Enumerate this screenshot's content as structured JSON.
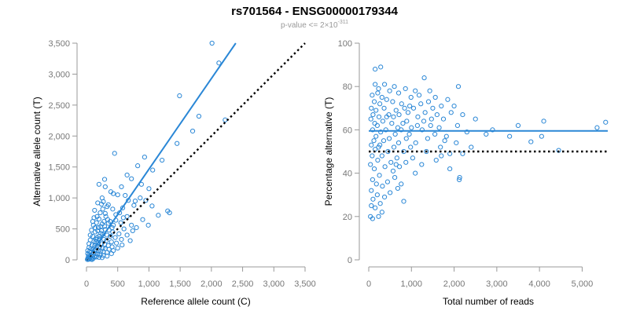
{
  "title": "rs701564 - ENSG00000179344",
  "subtitle": {
    "prefix": "p-value <= 2×10",
    "exponent": "-311"
  },
  "colors": {
    "points": "#2a87d6",
    "reference": "#000000",
    "axis": "#999999"
  },
  "chart_data": [
    {
      "type": "scatter",
      "xlabel": "Reference allele count (C)",
      "ylabel": "Alternative allele count (T)",
      "xlim": [
        0,
        3500
      ],
      "ylim": [
        0,
        3500
      ],
      "xticks": [
        0,
        500,
        1000,
        1500,
        2000,
        2500,
        3000,
        3500
      ],
      "xtick_labels": [
        "0",
        "500",
        "1,000",
        "1,500",
        "2,000",
        "2,500",
        "3,000",
        "3,500"
      ],
      "yticks": [
        0,
        500,
        1000,
        1500,
        2000,
        2500,
        3000,
        3500
      ],
      "ytick_labels": [
        "0",
        "500",
        "1,000",
        "1,500",
        "2,000",
        "2,500",
        "3,000",
        "3,500"
      ],
      "fit_line": {
        "x": [
          0,
          2390
        ],
        "y": [
          0,
          3500
        ]
      },
      "reference_line": {
        "x": [
          0,
          3500
        ],
        "y": [
          0,
          3500
        ]
      },
      "points": [
        [
          2010,
          3500
        ],
        [
          2120,
          3180
        ],
        [
          1490,
          2650
        ],
        [
          1800,
          2320
        ],
        [
          2220,
          2260
        ],
        [
          1700,
          2080
        ],
        [
          1450,
          1880
        ],
        [
          450,
          1720
        ],
        [
          930,
          1660
        ],
        [
          1210,
          1610
        ],
        [
          820,
          1520
        ],
        [
          1060,
          1450
        ],
        [
          290,
          1300
        ],
        [
          650,
          1370
        ],
        [
          720,
          1310
        ],
        [
          200,
          1220
        ],
        [
          560,
          1180
        ],
        [
          300,
          1180
        ],
        [
          880,
          1220
        ],
        [
          390,
          1100
        ],
        [
          430,
          1070
        ],
        [
          500,
          1050
        ],
        [
          620,
          1040
        ],
        [
          250,
          1000
        ],
        [
          670,
          960
        ],
        [
          950,
          960
        ],
        [
          180,
          920
        ],
        [
          270,
          940
        ],
        [
          350,
          890
        ],
        [
          760,
          880
        ],
        [
          1050,
          870
        ],
        [
          1300,
          790
        ],
        [
          1330,
          760
        ],
        [
          420,
          820
        ],
        [
          580,
          840
        ],
        [
          130,
          800
        ],
        [
          220,
          760
        ],
        [
          300,
          750
        ],
        [
          470,
          730
        ],
        [
          650,
          700
        ],
        [
          900,
          650
        ],
        [
          120,
          680
        ],
        [
          200,
          660
        ],
        [
          340,
          650
        ],
        [
          380,
          620
        ],
        [
          550,
          600
        ],
        [
          720,
          560
        ],
        [
          800,
          520
        ],
        [
          160,
          600
        ],
        [
          250,
          580
        ],
        [
          290,
          540
        ],
        [
          430,
          560
        ],
        [
          600,
          500
        ],
        [
          110,
          560
        ],
        [
          190,
          520
        ],
        [
          300,
          490
        ],
        [
          360,
          480
        ],
        [
          420,
          450
        ],
        [
          520,
          420
        ],
        [
          650,
          400
        ],
        [
          80,
          480
        ],
        [
          140,
          450
        ],
        [
          230,
          430
        ],
        [
          260,
          410
        ],
        [
          330,
          400
        ],
        [
          380,
          380
        ],
        [
          460,
          360
        ],
        [
          560,
          330
        ],
        [
          700,
          310
        ],
        [
          60,
          400
        ],
        [
          100,
          380
        ],
        [
          170,
          360
        ],
        [
          210,
          340
        ],
        [
          280,
          330
        ],
        [
          320,
          310
        ],
        [
          400,
          290
        ],
        [
          480,
          270
        ],
        [
          570,
          240
        ],
        [
          60,
          320
        ],
        [
          120,
          300
        ],
        [
          150,
          290
        ],
        [
          190,
          280
        ],
        [
          240,
          260
        ],
        [
          290,
          250
        ],
        [
          350,
          230
        ],
        [
          410,
          210
        ],
        [
          500,
          190
        ],
        [
          40,
          260
        ],
        [
          90,
          240
        ],
        [
          130,
          230
        ],
        [
          170,
          220
        ],
        [
          210,
          210
        ],
        [
          260,
          190
        ],
        [
          300,
          180
        ],
        [
          360,
          170
        ],
        [
          430,
          150
        ],
        [
          40,
          200
        ],
        [
          70,
          180
        ],
        [
          110,
          170
        ],
        [
          150,
          160
        ],
        [
          190,
          150
        ],
        [
          230,
          140
        ],
        [
          270,
          130
        ],
        [
          330,
          120
        ],
        [
          400,
          100
        ],
        [
          20,
          150
        ],
        [
          50,
          130
        ],
        [
          80,
          120
        ],
        [
          110,
          110
        ],
        [
          140,
          100
        ],
        [
          180,
          90
        ],
        [
          220,
          80
        ],
        [
          270,
          70
        ],
        [
          330,
          60
        ],
        [
          20,
          100
        ],
        [
          40,
          80
        ],
        [
          70,
          70
        ],
        [
          100,
          60
        ],
        [
          130,
          50
        ],
        [
          160,
          45
        ],
        [
          200,
          40
        ],
        [
          250,
          35
        ],
        [
          30,
          50
        ],
        [
          55,
          40
        ],
        [
          80,
          30
        ],
        [
          110,
          25
        ],
        [
          20,
          20
        ],
        [
          45,
          15
        ],
        [
          70,
          10
        ],
        [
          15,
          5
        ],
        [
          35,
          8
        ],
        [
          90,
          5
        ],
        [
          150,
          330
        ],
        [
          200,
          380
        ],
        [
          240,
          470
        ],
        [
          280,
          620
        ],
        [
          310,
          700
        ],
        [
          330,
          860
        ],
        [
          260,
          820
        ],
        [
          350,
          590
        ],
        [
          410,
          520
        ],
        [
          470,
          640
        ],
        [
          530,
          760
        ],
        [
          590,
          680
        ],
        [
          180,
          470
        ],
        [
          230,
          540
        ],
        [
          170,
          700
        ],
        [
          240,
          900
        ],
        [
          100,
          620
        ],
        [
          140,
          520
        ],
        [
          1000,
          1150
        ],
        [
          860,
          1000
        ],
        [
          780,
          950
        ],
        [
          1150,
          720
        ],
        [
          990,
          560
        ],
        [
          740,
          470
        ]
      ]
    },
    {
      "type": "scatter",
      "xlabel": "Total number of reads",
      "ylabel": "Percentage alternative (T)",
      "xlim": [
        0,
        5600
      ],
      "ylim": [
        0,
        100
      ],
      "xticks": [
        0,
        1000,
        2000,
        3000,
        4000,
        5000
      ],
      "xtick_labels": [
        "0",
        "1,000",
        "2,000",
        "3,000",
        "4,000",
        "5,000"
      ],
      "yticks": [
        0,
        20,
        40,
        60,
        80,
        100
      ],
      "ytick_labels": [
        "0",
        "20",
        "40",
        "60",
        "80",
        "100"
      ],
      "fit_line": {
        "x": [
          0,
          5600
        ],
        "y": [
          59.5,
          59.5
        ]
      },
      "reference_line": {
        "x": [
          0,
          5600
        ],
        "y": [
          50,
          50
        ]
      },
      "points": [
        [
          280,
          89
        ],
        [
          150,
          88
        ],
        [
          1300,
          84
        ],
        [
          150,
          81
        ],
        [
          370,
          81
        ],
        [
          600,
          80
        ],
        [
          2100,
          80
        ],
        [
          860,
          79
        ],
        [
          230,
          79
        ],
        [
          1090,
          78
        ],
        [
          490,
          78
        ],
        [
          1430,
          78
        ],
        [
          210,
          77
        ],
        [
          700,
          77
        ],
        [
          1180,
          76
        ],
        [
          80,
          76
        ],
        [
          310,
          75
        ],
        [
          990,
          75
        ],
        [
          1560,
          75
        ],
        [
          420,
          74
        ],
        [
          1850,
          74
        ],
        [
          130,
          73
        ],
        [
          560,
          73
        ],
        [
          1400,
          73
        ],
        [
          260,
          72
        ],
        [
          770,
          72
        ],
        [
          1220,
          72
        ],
        [
          1700,
          71
        ],
        [
          2000,
          71
        ],
        [
          60,
          70
        ],
        [
          360,
          70
        ],
        [
          840,
          70
        ],
        [
          1050,
          70
        ],
        [
          1500,
          70
        ],
        [
          170,
          69
        ],
        [
          640,
          69
        ],
        [
          920,
          68
        ],
        [
          1320,
          68
        ],
        [
          1930,
          68
        ],
        [
          100,
          67
        ],
        [
          470,
          67
        ],
        [
          710,
          67
        ],
        [
          1600,
          67
        ],
        [
          2200,
          67
        ],
        [
          240,
          66
        ],
        [
          580,
          66
        ],
        [
          1150,
          66
        ],
        [
          1750,
          65
        ],
        [
          2500,
          65
        ],
        [
          50,
          65
        ],
        [
          330,
          64
        ],
        [
          890,
          64
        ],
        [
          1290,
          64
        ],
        [
          4100,
          64
        ],
        [
          5550,
          63.5
        ],
        [
          140,
          63
        ],
        [
          540,
          63
        ],
        [
          800,
          63
        ],
        [
          1450,
          62
        ],
        [
          2080,
          62
        ],
        [
          200,
          62
        ],
        [
          680,
          61
        ],
        [
          1000,
          61
        ],
        [
          1650,
          61
        ],
        [
          5350,
          61
        ],
        [
          90,
          60
        ],
        [
          400,
          60
        ],
        [
          760,
          60
        ],
        [
          1250,
          60
        ],
        [
          2300,
          59
        ],
        [
          280,
          59
        ],
        [
          620,
          58
        ],
        [
          950,
          58
        ],
        [
          1550,
          58
        ],
        [
          2750,
          58
        ],
        [
          3300,
          57
        ],
        [
          4050,
          57
        ],
        [
          170,
          57
        ],
        [
          480,
          56
        ],
        [
          880,
          56
        ],
        [
          1380,
          56
        ],
        [
          1780,
          55
        ],
        [
          120,
          55
        ],
        [
          350,
          55
        ],
        [
          700,
          54
        ],
        [
          1100,
          54
        ],
        [
          2050,
          54
        ],
        [
          3800,
          54.5
        ],
        [
          60,
          53
        ],
        [
          260,
          53
        ],
        [
          590,
          52
        ],
        [
          980,
          52
        ],
        [
          1680,
          52
        ],
        [
          2400,
          52
        ],
        [
          4450,
          50.5
        ],
        [
          150,
          51
        ],
        [
          450,
          50
        ],
        [
          820,
          50
        ],
        [
          1350,
          50
        ],
        [
          1900,
          49
        ],
        [
          2200,
          49
        ],
        [
          80,
          48
        ],
        [
          310,
          48
        ],
        [
          660,
          47
        ],
        [
          1030,
          47
        ],
        [
          1580,
          46
        ],
        [
          210,
          46
        ],
        [
          520,
          45
        ],
        [
          870,
          45
        ],
        [
          1240,
          44
        ],
        [
          40,
          44
        ],
        [
          380,
          43
        ],
        [
          720,
          43
        ],
        [
          1900,
          42
        ],
        [
          130,
          42
        ],
        [
          570,
          41
        ],
        [
          1090,
          40
        ],
        [
          250,
          39
        ],
        [
          610,
          38
        ],
        [
          2130,
          38
        ],
        [
          2120,
          37
        ],
        [
          90,
          37
        ],
        [
          440,
          36
        ],
        [
          760,
          35
        ],
        [
          180,
          35
        ],
        [
          320,
          34
        ],
        [
          680,
          33
        ],
        [
          60,
          32
        ],
        [
          500,
          31
        ],
        [
          200,
          30
        ],
        [
          370,
          29
        ],
        [
          100,
          28
        ],
        [
          820,
          27
        ],
        [
          270,
          26
        ],
        [
          60,
          25
        ],
        [
          150,
          24
        ],
        [
          310,
          22
        ],
        [
          40,
          20
        ],
        [
          90,
          19
        ],
        [
          230,
          20
        ],
        [
          420,
          66
        ],
        [
          960,
          71
        ],
        [
          1140,
          62
        ],
        [
          1470,
          65
        ],
        [
          1820,
          57
        ],
        [
          2900,
          60
        ],
        [
          3500,
          62
        ],
        [
          640,
          44
        ],
        [
          1700,
          48
        ],
        [
          230,
          52
        ]
      ]
    }
  ]
}
